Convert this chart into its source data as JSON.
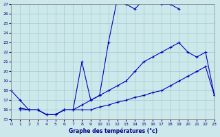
{
  "title": "Graphe des températures (°c)",
  "bg_color": "#cde8ea",
  "grid_color": "#a0c8cc",
  "line_color": "#0000bb",
  "x_min": 0,
  "x_max": 23,
  "y_min": 15,
  "y_max": 27,
  "line1_x": [
    0,
    1,
    2,
    3,
    4,
    5,
    6,
    7,
    8,
    9,
    10,
    11,
    12,
    13,
    14,
    15,
    16,
    17,
    18,
    19
  ],
  "line1_y": [
    18,
    17,
    16,
    16,
    15.5,
    15.5,
    16,
    16,
    21,
    17,
    17.5,
    23,
    27.5,
    27,
    26.5,
    27.5,
    27.5,
    27,
    27,
    26.5
  ],
  "line2_x": [
    1,
    2,
    3,
    4,
    5,
    6,
    7,
    8,
    9,
    10,
    11,
    12,
    13,
    14,
    15,
    16,
    17,
    18,
    19,
    20,
    21,
    22,
    23
  ],
  "line2_y": [
    16,
    16,
    16,
    15.5,
    15.5,
    16,
    16,
    16.5,
    17,
    17.5,
    18,
    18.5,
    19,
    20,
    21,
    21.5,
    22,
    22.5,
    23,
    22,
    21.5,
    22,
    17.5
  ],
  "line3_x": [
    1,
    2,
    3,
    4,
    5,
    6,
    7,
    8,
    9,
    10,
    11,
    12,
    13,
    14,
    15,
    16,
    17,
    18,
    19,
    20,
    21,
    22,
    23
  ],
  "line3_y": [
    16.2,
    16,
    16,
    15.5,
    15.5,
    16,
    16,
    16,
    16,
    16.3,
    16.5,
    16.8,
    17,
    17.3,
    17.5,
    17.8,
    18,
    18.5,
    19,
    19.5,
    20,
    20.5,
    17.5
  ]
}
